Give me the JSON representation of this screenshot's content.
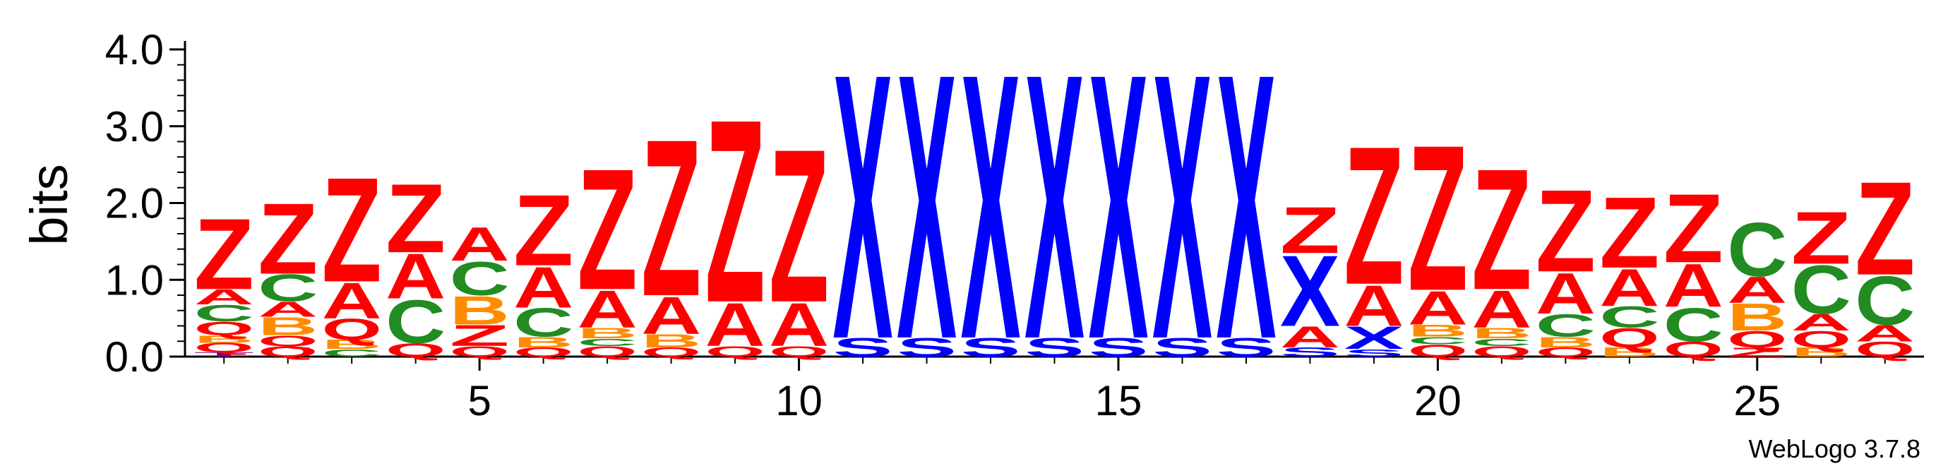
{
  "chart_data": {
    "type": "sequence-logo",
    "title": "",
    "xlabel": "",
    "ylabel": "bits",
    "ylim": [
      0,
      4.0
    ],
    "y_ticks": [
      "0.0",
      "1.0",
      "2.0",
      "3.0",
      "4.0"
    ],
    "x_ticks": [
      "5",
      "10",
      "15",
      "20",
      "25"
    ],
    "positions": [
      1,
      2,
      3,
      4,
      5,
      6,
      7,
      8,
      9,
      10,
      11,
      12,
      13,
      14,
      15,
      16,
      17,
      18,
      19,
      20,
      21,
      22,
      23,
      24,
      25,
      26,
      27
    ],
    "colors": {
      "Z": "#ff0000",
      "A": "#ff0000",
      "Q": "#ff0000",
      "C": "#228b22",
      "B": "#ff8c00",
      "X": "#0000ff",
      "S": "#0000ff",
      "T": "#800080"
    },
    "stacks": [
      {
        "position": 1,
        "letters": [
          {
            "letter": "T",
            "bits": 0.06
          },
          {
            "letter": "Q",
            "bits": 0.12
          },
          {
            "letter": "B",
            "bits": 0.1
          },
          {
            "letter": "Q",
            "bits": 0.18
          },
          {
            "letter": "C",
            "bits": 0.22
          },
          {
            "letter": "A",
            "bits": 0.2
          },
          {
            "letter": "Z",
            "bits": 0.95
          }
        ]
      },
      {
        "position": 2,
        "letters": [
          {
            "letter": "Q",
            "bits": 0.14
          },
          {
            "letter": "Q",
            "bits": 0.14
          },
          {
            "letter": "B",
            "bits": 0.24
          },
          {
            "letter": "A",
            "bits": 0.2
          },
          {
            "letter": "C",
            "bits": 0.36
          },
          {
            "letter": "Z",
            "bits": 0.95
          }
        ]
      },
      {
        "position": 3,
        "letters": [
          {
            "letter": "C",
            "bits": 0.1
          },
          {
            "letter": "B",
            "bits": 0.12
          },
          {
            "letter": "Q",
            "bits": 0.28
          },
          {
            "letter": "A",
            "bits": 0.48
          },
          {
            "letter": "Z",
            "bits": 1.4
          }
        ]
      },
      {
        "position": 4,
        "letters": [
          {
            "letter": "Q",
            "bits": 0.18
          },
          {
            "letter": "C",
            "bits": 0.58
          },
          {
            "letter": "A",
            "bits": 0.6
          },
          {
            "letter": "Z",
            "bits": 0.92
          }
        ]
      },
      {
        "position": 5,
        "letters": [
          {
            "letter": "Q",
            "bits": 0.14
          },
          {
            "letter": "Z",
            "bits": 0.28
          },
          {
            "letter": "B",
            "bits": 0.38
          },
          {
            "letter": "C",
            "bits": 0.45
          },
          {
            "letter": "A",
            "bits": 0.45
          }
        ]
      },
      {
        "position": 6,
        "letters": [
          {
            "letter": "Q",
            "bits": 0.12
          },
          {
            "letter": "B",
            "bits": 0.14
          },
          {
            "letter": "C",
            "bits": 0.38
          },
          {
            "letter": "A",
            "bits": 0.55
          },
          {
            "letter": "Z",
            "bits": 0.95
          }
        ]
      },
      {
        "position": 7,
        "letters": [
          {
            "letter": "Q",
            "bits": 0.14
          },
          {
            "letter": "C",
            "bits": 0.1
          },
          {
            "letter": "B",
            "bits": 0.14
          },
          {
            "letter": "A",
            "bits": 0.5
          },
          {
            "letter": "Z",
            "bits": 1.62
          }
        ]
      },
      {
        "position": 8,
        "letters": [
          {
            "letter": "Q",
            "bits": 0.12
          },
          {
            "letter": "B",
            "bits": 0.18
          },
          {
            "letter": "A",
            "bits": 0.5
          },
          {
            "letter": "Z",
            "bits": 2.1
          }
        ]
      },
      {
        "position": 9,
        "letters": [
          {
            "letter": "Q",
            "bits": 0.14
          },
          {
            "letter": "A",
            "bits": 0.58
          },
          {
            "letter": "Z",
            "bits": 2.45
          }
        ]
      },
      {
        "position": 10,
        "letters": [
          {
            "letter": "Q",
            "bits": 0.14
          },
          {
            "letter": "A",
            "bits": 0.58
          },
          {
            "letter": "Z",
            "bits": 2.05
          }
        ]
      },
      {
        "position": 11,
        "letters": [
          {
            "letter": "S",
            "bits": 0.25
          },
          {
            "letter": "X",
            "bits": 3.55
          }
        ]
      },
      {
        "position": 12,
        "letters": [
          {
            "letter": "S",
            "bits": 0.25
          },
          {
            "letter": "X",
            "bits": 3.55
          }
        ]
      },
      {
        "position": 13,
        "letters": [
          {
            "letter": "S",
            "bits": 0.25
          },
          {
            "letter": "X",
            "bits": 3.55
          }
        ]
      },
      {
        "position": 14,
        "letters": [
          {
            "letter": "S",
            "bits": 0.25
          },
          {
            "letter": "X",
            "bits": 3.55
          }
        ]
      },
      {
        "position": 15,
        "letters": [
          {
            "letter": "S",
            "bits": 0.25
          },
          {
            "letter": "X",
            "bits": 3.55
          }
        ]
      },
      {
        "position": 16,
        "letters": [
          {
            "letter": "S",
            "bits": 0.25
          },
          {
            "letter": "X",
            "bits": 3.55
          }
        ]
      },
      {
        "position": 17,
        "letters": [
          {
            "letter": "S",
            "bits": 0.25
          },
          {
            "letter": "X",
            "bits": 3.55
          }
        ]
      },
      {
        "position": 18,
        "letters": [
          {
            "letter": "S",
            "bits": 0.12
          },
          {
            "letter": "A",
            "bits": 0.28
          },
          {
            "letter": "X",
            "bits": 0.95
          },
          {
            "letter": "Z",
            "bits": 0.62
          }
        ]
      },
      {
        "position": 19,
        "letters": [
          {
            "letter": "S",
            "bits": 0.1
          },
          {
            "letter": "X",
            "bits": 0.3
          },
          {
            "letter": "A",
            "bits": 0.55
          },
          {
            "letter": "Z",
            "bits": 1.85
          }
        ]
      },
      {
        "position": 20,
        "letters": [
          {
            "letter": "Q",
            "bits": 0.16
          },
          {
            "letter": "C",
            "bits": 0.1
          },
          {
            "letter": "B",
            "bits": 0.16
          },
          {
            "letter": "A",
            "bits": 0.45
          },
          {
            "letter": "Z",
            "bits": 1.95
          }
        ]
      },
      {
        "position": 21,
        "letters": [
          {
            "letter": "Q",
            "bits": 0.14
          },
          {
            "letter": "C",
            "bits": 0.1
          },
          {
            "letter": "B",
            "bits": 0.14
          },
          {
            "letter": "A",
            "bits": 0.5
          },
          {
            "letter": "Z",
            "bits": 1.62
          }
        ]
      },
      {
        "position": 22,
        "letters": [
          {
            "letter": "Q",
            "bits": 0.12
          },
          {
            "letter": "B",
            "bits": 0.14
          },
          {
            "letter": "C",
            "bits": 0.3
          },
          {
            "letter": "A",
            "bits": 0.55
          },
          {
            "letter": "Z",
            "bits": 1.1
          }
        ]
      },
      {
        "position": 23,
        "letters": [
          {
            "letter": "B",
            "bits": 0.12
          },
          {
            "letter": "Q",
            "bits": 0.26
          },
          {
            "letter": "C",
            "bits": 0.28
          },
          {
            "letter": "A",
            "bits": 0.5
          },
          {
            "letter": "Z",
            "bits": 0.95
          }
        ]
      },
      {
        "position": 24,
        "letters": [
          {
            "letter": "Q",
            "bits": 0.2
          },
          {
            "letter": "C",
            "bits": 0.45
          },
          {
            "letter": "A",
            "bits": 0.58
          },
          {
            "letter": "Z",
            "bits": 0.92
          }
        ]
      },
      {
        "position": 25,
        "letters": [
          {
            "letter": "Z",
            "bits": 0.12
          },
          {
            "letter": "Q",
            "bits": 0.22
          },
          {
            "letter": "B",
            "bits": 0.36
          },
          {
            "letter": "A",
            "bits": 0.35
          },
          {
            "letter": "C",
            "bits": 0.72
          }
        ]
      },
      {
        "position": 26,
        "letters": [
          {
            "letter": "B",
            "bits": 0.12
          },
          {
            "letter": "Q",
            "bits": 0.22
          },
          {
            "letter": "A",
            "bits": 0.22
          },
          {
            "letter": "C",
            "bits": 0.65
          },
          {
            "letter": "Z",
            "bits": 0.7
          }
        ]
      },
      {
        "position": 27,
        "letters": [
          {
            "letter": "Q",
            "bits": 0.2
          },
          {
            "letter": "A",
            "bits": 0.22
          },
          {
            "letter": "C",
            "bits": 0.65
          },
          {
            "letter": "Z",
            "bits": 1.25
          }
        ]
      }
    ]
  },
  "credit": "WebLogo 3.7.8"
}
